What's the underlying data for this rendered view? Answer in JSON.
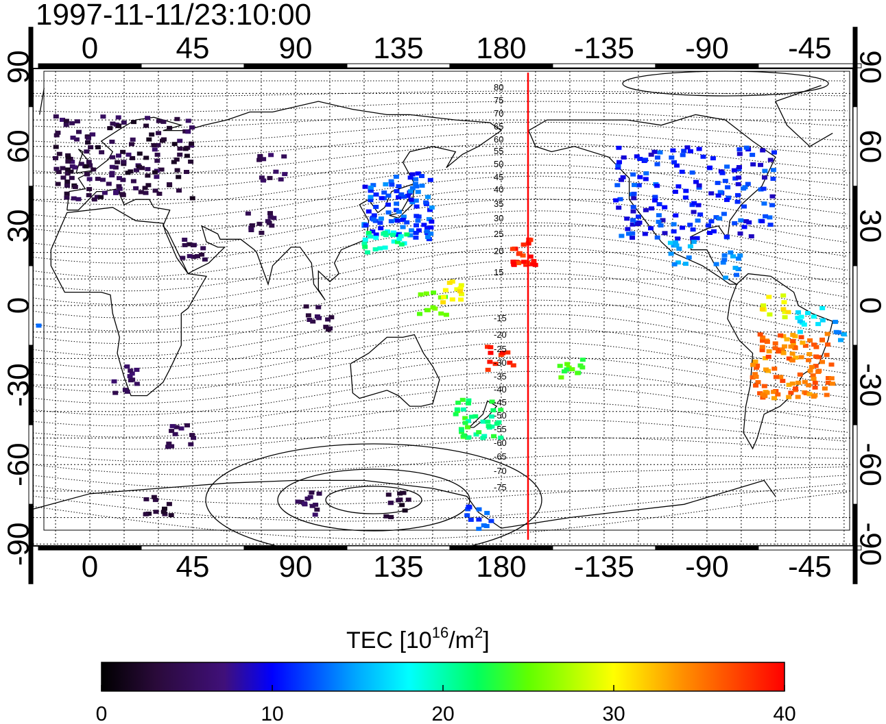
{
  "title": "1997-11-11/23:10:00",
  "map": {
    "lon_ticks_top": [
      "0",
      "45",
      "90",
      "135",
      "180",
      "-135",
      "-90",
      "-45"
    ],
    "lon_ticks_bottom": [
      "0",
      "45",
      "90",
      "135",
      "180",
      "-135",
      "-90",
      "-45"
    ],
    "lat_ticks_left": [
      "90",
      "60",
      "30",
      "0",
      "-30",
      "-60",
      "-90"
    ],
    "lat_ticks_right": [
      "90",
      "60",
      "30",
      "0",
      "-30",
      "-60",
      "-90"
    ],
    "contour_labels": [
      "80",
      "75",
      "70",
      "65",
      "60",
      "55",
      "50",
      "45",
      "40",
      "35",
      "30",
      "25",
      "20",
      "15",
      "-15",
      "-20",
      "-25",
      "-30",
      "-35",
      "-40",
      "-45",
      "-50",
      "-55",
      "-60",
      "-65",
      "-70",
      "-75"
    ],
    "terminator_color": "#ff0000"
  },
  "colorbar": {
    "label_prefix": "TEC  [10",
    "label_exp1": "16",
    "label_mid": "/m",
    "label_exp2": "2",
    "label_suffix": "]",
    "ticks": [
      "0",
      "10",
      "20",
      "30",
      "40"
    ],
    "range": [
      0,
      40
    ]
  },
  "chart_data": {
    "type": "heatmap",
    "title": "1997-11-11/23:10:00",
    "value_label": "TEC [10^16/m^2]",
    "value_range": [
      0,
      40
    ],
    "regions": [
      {
        "lon": [
          -15,
          45
        ],
        "lat": [
          40,
          72
        ],
        "tec": 4
      },
      {
        "lon": [
          120,
          150
        ],
        "lat": [
          25,
          50
        ],
        "tec": 12
      },
      {
        "lon": [
          120,
          140
        ],
        "lat": [
          20,
          28
        ],
        "tec": 20
      },
      {
        "lon": [
          -130,
          -60
        ],
        "lat": [
          25,
          60
        ],
        "tec": 11
      },
      {
        "lon": [
          -175,
          -165
        ],
        "lat": [
          15,
          25
        ],
        "tec": 39
      },
      {
        "lon": [
          -70,
          -35
        ],
        "lat": [
          -35,
          -10
        ],
        "tec": 35
      },
      {
        "lon": [
          160,
          180
        ],
        "lat": [
          -50,
          -35
        ],
        "tec": 22
      }
    ]
  }
}
